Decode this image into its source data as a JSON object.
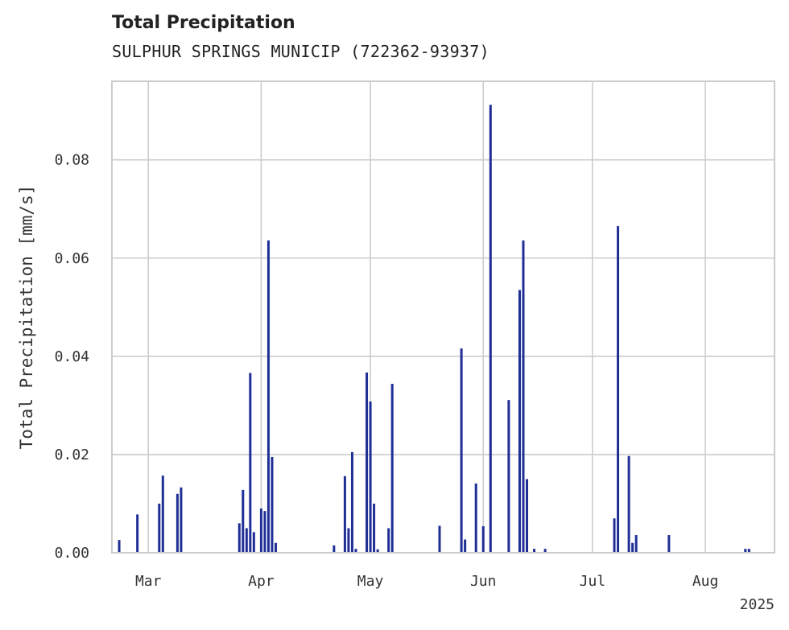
{
  "chart_data": {
    "type": "bar",
    "title": "Total Precipitation",
    "subtitle": "SULPHUR SPRINGS MUNICIP (722362-93937)",
    "ylabel": "Total Precipitation [mm/s]",
    "xlabel": "",
    "ylim": [
      0,
      0.096
    ],
    "xlim": [
      "2025-02-19",
      "2025-08-20"
    ],
    "yticks": [
      0.0,
      0.02,
      0.04,
      0.06,
      0.08
    ],
    "ytick_labels": [
      "0.00",
      "0.02",
      "0.04",
      "0.06",
      "0.08"
    ],
    "xticks": [
      "2025-03-01",
      "2025-04-01",
      "2025-05-01",
      "2025-06-01",
      "2025-07-01",
      "2025-08-01"
    ],
    "xtick_labels": [
      "Mar",
      "Apr",
      "May",
      "Jun",
      "Jul",
      "Aug"
    ],
    "x_offset_label": "2025",
    "grid": true,
    "bar_color": "#1f2f96",
    "series": [
      {
        "x": [
          "2025-02-21",
          "2025-02-26",
          "2025-03-04",
          "2025-03-05",
          "2025-03-09",
          "2025-03-10",
          "2025-03-26",
          "2025-03-27",
          "2025-03-28",
          "2025-03-29",
          "2025-03-30",
          "2025-04-01",
          "2025-04-02",
          "2025-04-03",
          "2025-04-04",
          "2025-04-05",
          "2025-04-21",
          "2025-04-24",
          "2025-04-25",
          "2025-04-26",
          "2025-04-27",
          "2025-04-30",
          "2025-05-01",
          "2025-05-02",
          "2025-05-03",
          "2025-05-06",
          "2025-05-07",
          "2025-05-20",
          "2025-05-26",
          "2025-05-27",
          "2025-05-30",
          "2025-06-01",
          "2025-06-03",
          "2025-06-08",
          "2025-06-11",
          "2025-06-12",
          "2025-06-13",
          "2025-06-15",
          "2025-06-18",
          "2025-07-07",
          "2025-07-08",
          "2025-07-11",
          "2025-07-12",
          "2025-07-13",
          "2025-07-22",
          "2025-08-12",
          "2025-08-13"
        ],
        "values": [
          0.0026,
          0.0078,
          0.01,
          0.0157,
          0.012,
          0.0133,
          0.006,
          0.0128,
          0.005,
          0.0366,
          0.0042,
          0.009,
          0.0085,
          0.0636,
          0.0195,
          0.002,
          0.0015,
          0.0156,
          0.005,
          0.0205,
          0.0008,
          0.0367,
          0.0308,
          0.01,
          0.0007,
          0.005,
          0.0344,
          0.0055,
          0.0416,
          0.0027,
          0.0141,
          0.0054,
          0.0912,
          0.0311,
          0.0535,
          0.0636,
          0.015,
          0.0008,
          0.0008,
          0.007,
          0.0665,
          0.0197,
          0.002,
          0.0036,
          0.0036,
          0.0008,
          0.0008
        ]
      }
    ]
  }
}
